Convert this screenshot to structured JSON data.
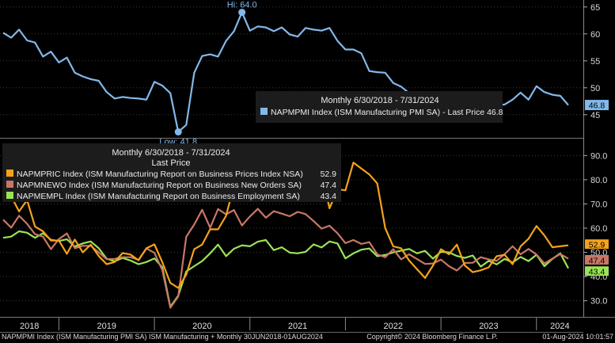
{
  "colors": {
    "pmi": "#82b8ea",
    "prices": "#f5a21b",
    "orders": "#c87766",
    "employment": "#9be356",
    "background": "#000000",
    "panel": "#1c1c1c"
  },
  "chart_data": [
    {
      "type": "line",
      "panel": "top",
      "legend": {
        "header": "Monthly 6/30/2018 - 7/31/2024",
        "entries": [
          "NAPMPMI Index (ISM Manufacturing PMI SA) - Last Price 46.8"
        ]
      },
      "ylim": [
        41,
        66
      ],
      "yticks": [
        "45",
        "50",
        "55",
        "60",
        "65"
      ],
      "annotations": {
        "high": "Hi: 64.0",
        "low": "Low: 41.8"
      },
      "last_label": "46.8",
      "series": [
        {
          "name": "NAPMPMI Index (ISM Manufacturing PMI SA)",
          "color_key": "pmi",
          "values": [
            60.2,
            59.3,
            60.8,
            58.8,
            58.4,
            55.8,
            56.7,
            54.7,
            55.6,
            52.8,
            52.1,
            51.6,
            51.3,
            49.2,
            48.0,
            48.3,
            48.1,
            48.0,
            47.8,
            51.1,
            50.4,
            49.0,
            41.8,
            43.1,
            52.8,
            55.9,
            56.2,
            55.8,
            58.7,
            60.5,
            64.0,
            60.6,
            61.4,
            61.2,
            60.5,
            61.2,
            59.9,
            59.5,
            61.1,
            60.8,
            60.6,
            61.1,
            58.7,
            57.1,
            57.1,
            56.4,
            53.1,
            52.9,
            52.8,
            50.9,
            50.2,
            49.0,
            48.4,
            47.4,
            47.7,
            46.3,
            46.9,
            46.0,
            46.4,
            47.6,
            49.0,
            47.4,
            46.7,
            46.9,
            47.8,
            49.1,
            47.8,
            50.3,
            49.2,
            48.7,
            48.5,
            46.8
          ]
        }
      ]
    },
    {
      "type": "line",
      "panel": "bottom",
      "legend": {
        "header": "Monthly 6/30/2018 - 7/31/2024",
        "subheader": "Last Price",
        "entries": [
          "NAPMPRIC Index (ISM Manufacturing Report on Business Prices Index NSA)",
          "NAPMNEWO Index (ISM Manufacturing Report on Business New Orders SA)",
          "NAPMEMPL Index (ISM Manufacturing Report on Business Employment SA)"
        ],
        "last_values": [
          "52.9",
          "47.4",
          "43.4"
        ]
      },
      "ylim": [
        24,
        96
      ],
      "yticks": [
        "30.0",
        "40.0",
        "50.0",
        "60.0",
        "70.0",
        "80.0",
        "90.0"
      ],
      "series": [
        {
          "name": "NAPMPRIC Index (ISM Manufacturing Report on Business Prices Index NSA)",
          "color_key": "prices",
          "values": [
            76.8,
            73.2,
            66.9,
            71.6,
            60.7,
            58.7,
            54.9,
            54.9,
            49.4,
            55.3,
            50.0,
            53.2,
            48.5,
            45.1,
            46.0,
            49.7,
            49.1,
            46.7,
            51.7,
            53.3,
            45.9,
            37.4,
            35.3,
            40.8,
            51.3,
            53.2,
            59.5,
            59.5,
            65.1,
            77.6,
            82.1,
            86.0,
            85.6,
            89.6,
            88.0,
            92.1,
            85.7,
            79.4,
            81.2,
            85.7,
            82.9,
            68.2,
            76.1,
            75.6,
            87.1,
            84.6,
            82.2,
            78.5,
            60.0,
            52.5,
            51.7,
            46.6,
            43.0,
            39.4,
            44.5,
            51.3,
            49.2,
            53.2,
            44.6,
            41.8,
            42.6,
            43.8,
            48.4,
            49.0,
            45.1,
            52.5,
            55.6,
            60.9,
            57.0,
            52.1,
            52.5,
            52.9
          ]
        },
        {
          "name": "NAPMNEWO Index (ISM Manufacturing Report on Business New Orders SA)",
          "color_key": "orders",
          "values": [
            63.5,
            60.2,
            65.1,
            61.8,
            57.5,
            56.5,
            51.3,
            55.5,
            57.8,
            51.7,
            52.7,
            52.7,
            50.0,
            47.2,
            47.3,
            48.0,
            48.0,
            46.9,
            51.6,
            49.8,
            42.6,
            27.1,
            31.8,
            56.4,
            61.5,
            67.6,
            60.2,
            67.9,
            65.7,
            67.5,
            61.1,
            64.8,
            68.0,
            64.3,
            67.0,
            66.0,
            64.9,
            66.7,
            65.8,
            62.9,
            59.8,
            61.0,
            57.9,
            53.8,
            55.1,
            53.5,
            54.2,
            49.2,
            48.0,
            51.3,
            47.1,
            49.2,
            47.2,
            45.2,
            45.4,
            47.0,
            44.3,
            42.5,
            45.6,
            45.7,
            48.0,
            47.1,
            46.5,
            49.2,
            52.5,
            49.2,
            51.4,
            49.1,
            45.4,
            47.4,
            49.3,
            47.4
          ]
        },
        {
          "name": "NAPMEMPL Index (ISM Manufacturing Report on Business Employment SA)",
          "color_key": "employment",
          "values": [
            56.0,
            56.5,
            58.7,
            58.1,
            56.0,
            57.9,
            55.2,
            54.7,
            55.4,
            52.4,
            53.7,
            54.5,
            51.7,
            47.4,
            46.3,
            47.7,
            46.6,
            45.1,
            46.0,
            47.5,
            43.8,
            27.5,
            32.1,
            42.1,
            44.3,
            46.4,
            49.6,
            53.2,
            48.4,
            51.5,
            52.9,
            52.5,
            54.4,
            55.1,
            50.9,
            52.1,
            49.9,
            49.6,
            50.2,
            53.3,
            52.0,
            54.5,
            53.7,
            47.5,
            49.6,
            51.1,
            51.6,
            48.4,
            48.9,
            50.0,
            50.7,
            51.4,
            49.6,
            50.6,
            47.4,
            50.2,
            50.0,
            48.5,
            47.7,
            48.7,
            44.1,
            46.5,
            45.0,
            47.3,
            45.8,
            48.1,
            46.4,
            49.0,
            44.3,
            47.3,
            49.6,
            43.4
          ]
        }
      ],
      "xticks": [
        "2018",
        "2019",
        "2020",
        "2021",
        "2022",
        "2023",
        "2024"
      ]
    }
  ],
  "footer": {
    "left": "NAPMPMI Index (ISM Manufacturing PMI SA) ISM Manufacturing + Monthly 30JUN2018-01AUG2024",
    "center": "Copyright© 2024 Bloomberg Finance L.P.",
    "right": "01-Aug-2024 10:01:57"
  }
}
